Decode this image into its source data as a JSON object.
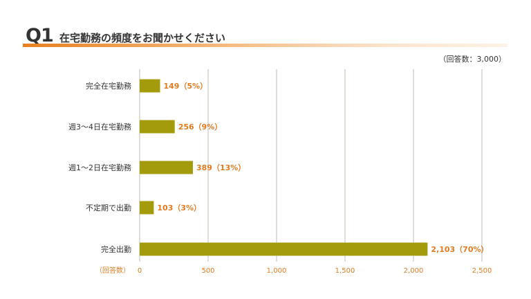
{
  "header": {
    "question_number": "Q1",
    "title": "在宅勤務の頻度をお聞かせください",
    "respondents_note": "（回答数：3,000）"
  },
  "colors": {
    "bar": "#a39b0b",
    "accent": "#e07b20",
    "grid": "#d8d0c8"
  },
  "chart_data": {
    "type": "bar",
    "orientation": "horizontal",
    "categories": [
      "完全在宅勤務",
      "週3〜4日在宅勤務",
      "週1〜2日在宅勤務",
      "不定期で出勤",
      "完全出勤"
    ],
    "values": [
      149,
      256,
      389,
      103,
      2103
    ],
    "percent_labels": [
      "149（5%）",
      "256（9%）",
      "389（13%）",
      "103（3%）",
      "2,103（70%）"
    ],
    "xlim": [
      0,
      2500
    ],
    "xticks": [
      0,
      500,
      1000,
      1500,
      2000,
      2500
    ],
    "xtick_labels": [
      "0",
      "500",
      "1,000",
      "1,500",
      "2,000",
      "2,500"
    ],
    "xaxis_unit": "（回答数）",
    "grid": true
  }
}
